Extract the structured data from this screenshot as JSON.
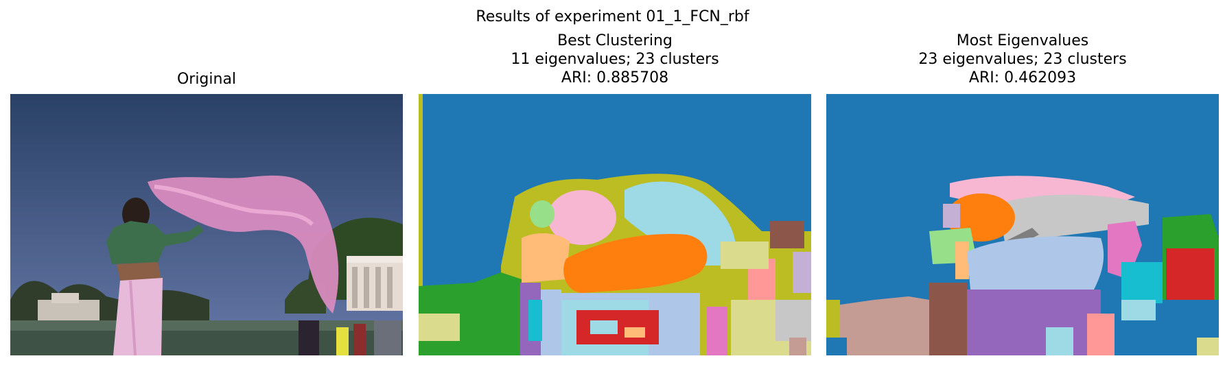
{
  "figure": {
    "suptitle": "Results of experiment 01_1_FCN_rbf"
  },
  "panels": [
    {
      "id": "original",
      "title_lines": [
        "Original"
      ]
    },
    {
      "id": "best",
      "title_lines": [
        "Best Clustering",
        "11 eigenvalues; 23 clusters",
        "ARI: 0.885708"
      ]
    },
    {
      "id": "most",
      "title_lines": [
        "Most Eigenvalues",
        "23 eigenvalues; 23 clusters",
        "ARI: 0.462093"
      ]
    }
  ],
  "colors": {
    "sky_top": "#2c4468",
    "sky_bottom": "#5b6f9e",
    "scarf": "#d98cc0",
    "blouse": "#3b6b4b",
    "skirt": "#e7b8d7",
    "tab_blue": "#1f77b4",
    "tab_orange": "#ff7f0e",
    "tab_green": "#2ca02c",
    "tab_red": "#d62728",
    "tab_purple": "#9467bd",
    "tab_brown": "#8c564b",
    "tab_pink": "#e377c2",
    "tab_gray": "#7f7f7f",
    "tab_olive": "#bcbd22",
    "tab_cyan": "#17becf",
    "light_blue": "#aec7e8",
    "light_orange": "#ffbb78",
    "light_green": "#98df8a",
    "light_red": "#ff9896",
    "light_purple": "#c5b0d5",
    "light_brown": "#c49c94",
    "light_pink": "#f7b6d2",
    "light_gray": "#c7c7c7",
    "light_olive": "#dbdb8d",
    "light_cyan": "#9edae5"
  }
}
